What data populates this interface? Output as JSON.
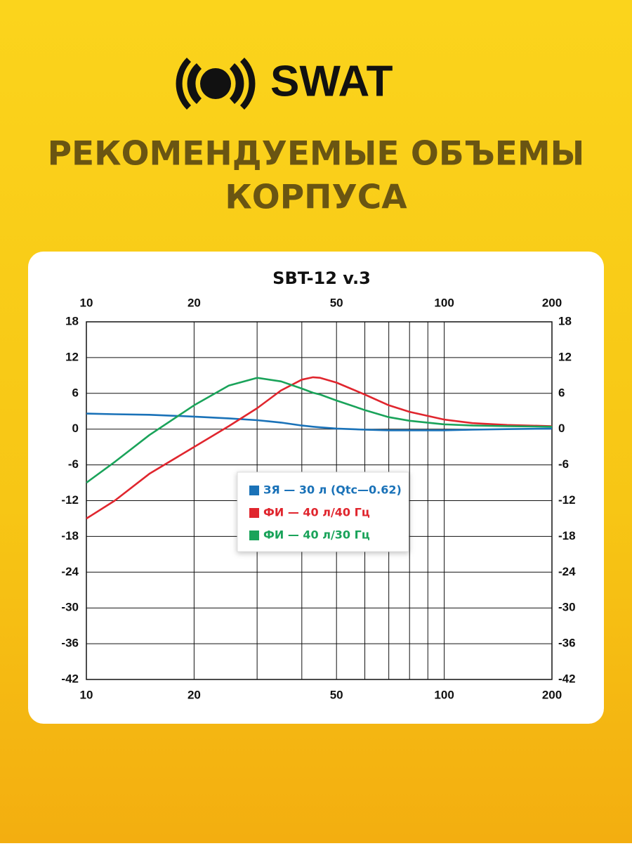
{
  "logo": "SWAT",
  "headline": [
    "РЕКОМЕНДУЕМЫЕ ОБЪЕМЫ",
    "КОРПУСА"
  ],
  "chart_data": {
    "type": "line",
    "title": "SBT-12 v.3",
    "x": [
      10,
      12,
      15,
      20,
      25,
      30,
      35,
      40,
      43,
      45,
      50,
      60,
      70,
      80,
      100,
      120,
      150,
      200
    ],
    "series": [
      {
        "name": "ЗЯ — 30 л (Qtc—0.62)",
        "color": "#1a72b8",
        "values": [
          2.6,
          2.5,
          2.4,
          2.1,
          1.8,
          1.5,
          1.1,
          0.6,
          0.4,
          0.3,
          0.1,
          -0.1,
          -0.2,
          -0.2,
          -0.2,
          -0.1,
          0,
          0.1
        ]
      },
      {
        "name": "ФИ — 40 л/40 Гц",
        "color": "#e0262e",
        "values": [
          -15,
          -12,
          -7.5,
          -3,
          0.5,
          3.5,
          6.5,
          8.3,
          8.7,
          8.6,
          7.8,
          5.8,
          4,
          2.9,
          1.6,
          1,
          0.7,
          0.5
        ]
      },
      {
        "name": "ФИ — 40 л/30 Гц",
        "color": "#1aa35a",
        "values": [
          -9,
          -5.5,
          -1,
          4,
          7.3,
          8.6,
          8,
          6.8,
          6.1,
          5.8,
          4.8,
          3.2,
          2,
          1.4,
          0.8,
          0.6,
          0.5,
          0.4
        ]
      }
    ],
    "xscale": "log",
    "xlim": [
      10,
      200
    ],
    "xticks": [
      10,
      20,
      50,
      100,
      200
    ],
    "xgrid": [
      10,
      20,
      30,
      40,
      50,
      60,
      70,
      80,
      90,
      100,
      200
    ],
    "ylim": [
      -42,
      18
    ],
    "yticks": [
      -42,
      -36,
      -30,
      -24,
      -18,
      -12,
      -6,
      0,
      6,
      12,
      18
    ],
    "grid": true
  }
}
